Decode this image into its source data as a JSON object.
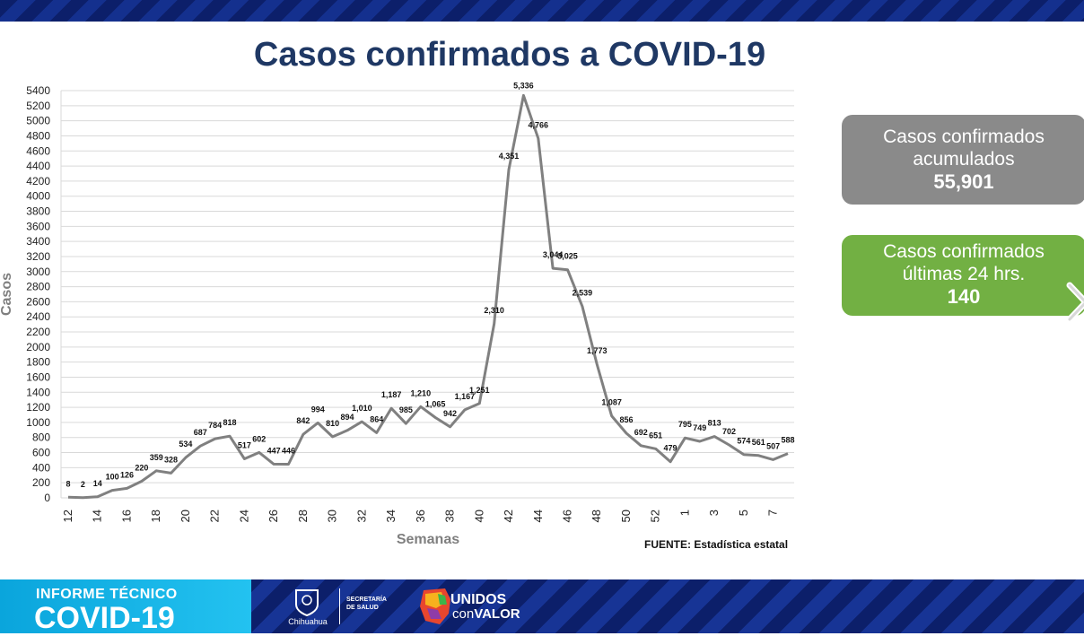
{
  "header": {
    "title": "Casos confirmados a COVID-19"
  },
  "chart_data": {
    "type": "line",
    "title": "Casos confirmados a COVID-19",
    "xlabel": "Semanas",
    "ylabel": "Casos",
    "ylim": [
      0,
      5400
    ],
    "ytick_step": 200,
    "grid": true,
    "line_color": "#808080",
    "categories": [
      "12",
      "13",
      "14",
      "15",
      "16",
      "17",
      "18",
      "19",
      "20",
      "21",
      "22",
      "23",
      "24",
      "25",
      "26",
      "27",
      "28",
      "29",
      "30",
      "31",
      "32",
      "33",
      "34",
      "35",
      "36",
      "37",
      "38",
      "39",
      "40",
      "41",
      "42",
      "43",
      "44",
      "45",
      "46",
      "47",
      "48",
      "49",
      "50",
      "51",
      "52",
      "53",
      "1",
      "2",
      "3",
      "4",
      "5",
      "6",
      "7",
      "8"
    ],
    "x_tick_labels": [
      "12",
      "14",
      "16",
      "18",
      "20",
      "22",
      "24",
      "26",
      "28",
      "30",
      "32",
      "34",
      "36",
      "38",
      "40",
      "42",
      "44",
      "46",
      "48",
      "50",
      "52",
      "1",
      "3",
      "5",
      "7"
    ],
    "values": [
      8,
      2,
      14,
      100,
      126,
      220,
      359,
      328,
      534,
      687,
      784,
      818,
      517,
      602,
      447,
      446,
      842,
      994,
      810,
      894,
      1010,
      864,
      1187,
      985,
      1210,
      1065,
      942,
      1167,
      1251,
      2310,
      4351,
      5336,
      4766,
      3044,
      3025,
      2539,
      1773,
      1087,
      856,
      692,
      651,
      479,
      795,
      749,
      813,
      702,
      574,
      561,
      507,
      588
    ],
    "data_labels": [
      "8",
      "2",
      "14",
      "100",
      "126",
      "220",
      "359",
      "328",
      "534",
      "687",
      "784",
      "818",
      "517",
      "602",
      "447",
      "446",
      "842",
      "994",
      "810",
      "894",
      "1,010",
      "864",
      "1,187",
      "985",
      "1,210",
      "1,065",
      "942",
      "1,167",
      "1,251",
      "2,310",
      "4,351",
      "5,336",
      "4,766",
      "3,044",
      "3,025",
      "2,539",
      "1,773",
      "1,087",
      "856",
      "692",
      "651",
      "479",
      "795",
      "749",
      "813",
      "702",
      "574",
      "561",
      "507",
      "588"
    ]
  },
  "stats": {
    "accumulated": {
      "label_line1": "Casos confirmados",
      "label_line2": "acumulados",
      "value": "55,901",
      "color": "#8a8a8a"
    },
    "last24": {
      "label_line1": "Casos confirmados",
      "label_line2": "últimas 24 hrs.",
      "value": "140",
      "color": "#72b043"
    }
  },
  "source": "FUENTE: Estadística estatal",
  "footer": {
    "report_line1": "INFORME TÉCNICO",
    "report_line2": "COVID-19",
    "state": "Chihuahua",
    "secretaria_line1": "SECRETARÍA",
    "secretaria_line2": "DE SALUD",
    "slogan_line1": "UNIDOS",
    "slogan_con": "con",
    "slogan_valor": "VALOR"
  },
  "icons": {
    "next": "chevron-right-icon",
    "shield": "chihuahua-shield-icon",
    "map": "state-map-icon"
  }
}
